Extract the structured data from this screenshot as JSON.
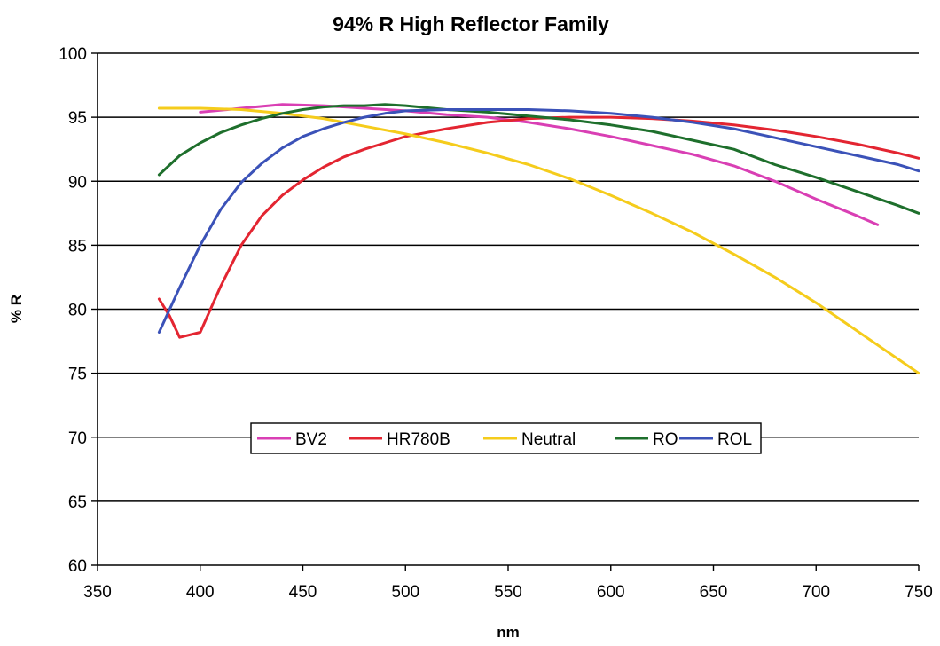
{
  "chart_data": {
    "type": "line",
    "title": "94% R High Reflector Family",
    "xlabel": "nm",
    "ylabel": "% R",
    "xlim": [
      350,
      750
    ],
    "ylim": [
      60,
      100
    ],
    "xticks": [
      350,
      400,
      450,
      500,
      550,
      600,
      650,
      700,
      750
    ],
    "yticks": [
      60,
      65,
      70,
      75,
      80,
      85,
      90,
      95,
      100
    ],
    "grid": "horizontal",
    "legend_placement": "lower-center",
    "series": [
      {
        "name": "BV2",
        "color": "#d93fb4",
        "x": [
          400,
          420,
          440,
          460,
          480,
          500,
          520,
          540,
          560,
          580,
          600,
          620,
          640,
          660,
          680,
          700,
          720,
          730
        ],
        "y": [
          95.4,
          95.7,
          96.0,
          95.9,
          95.7,
          95.5,
          95.2,
          95.0,
          94.6,
          94.1,
          93.5,
          92.8,
          92.1,
          91.2,
          90.0,
          88.6,
          87.3,
          86.6
        ]
      },
      {
        "name": "HR780B",
        "color": "#e32531",
        "x": [
          380,
          385,
          390,
          400,
          410,
          420,
          430,
          440,
          450,
          460,
          470,
          480,
          490,
          500,
          520,
          540,
          560,
          580,
          600,
          620,
          640,
          660,
          680,
          700,
          720,
          740,
          750
        ],
        "y": [
          80.8,
          79.5,
          77.8,
          78.2,
          81.8,
          85.0,
          87.3,
          88.9,
          90.1,
          91.1,
          91.9,
          92.5,
          93.0,
          93.5,
          94.1,
          94.6,
          94.9,
          95.0,
          95.0,
          94.9,
          94.7,
          94.4,
          94.0,
          93.5,
          92.9,
          92.2,
          91.8
        ]
      },
      {
        "name": "Neutral",
        "color": "#f5cc1c",
        "x": [
          380,
          400,
          420,
          440,
          460,
          480,
          500,
          520,
          540,
          560,
          580,
          600,
          620,
          640,
          660,
          680,
          700,
          720,
          740,
          750
        ],
        "y": [
          95.7,
          95.7,
          95.6,
          95.3,
          94.9,
          94.3,
          93.7,
          93.0,
          92.2,
          91.3,
          90.2,
          88.9,
          87.5,
          86.0,
          84.3,
          82.5,
          80.5,
          78.3,
          76.1,
          75.0
        ]
      },
      {
        "name": "RO",
        "color": "#1e6f2c",
        "x": [
          380,
          390,
          400,
          410,
          420,
          430,
          440,
          450,
          460,
          470,
          480,
          490,
          500,
          520,
          540,
          560,
          580,
          600,
          620,
          640,
          660,
          680,
          700,
          720,
          740,
          750
        ],
        "y": [
          90.5,
          92.0,
          93.0,
          93.8,
          94.4,
          94.9,
          95.3,
          95.6,
          95.8,
          95.9,
          95.9,
          96.0,
          95.9,
          95.6,
          95.4,
          95.1,
          94.8,
          94.4,
          93.9,
          93.2,
          92.5,
          91.3,
          90.3,
          89.2,
          88.1,
          87.5
        ]
      },
      {
        "name": "ROL",
        "color": "#3b52b8",
        "x": [
          380,
          390,
          400,
          410,
          420,
          430,
          440,
          450,
          460,
          470,
          480,
          490,
          500,
          520,
          540,
          560,
          580,
          600,
          620,
          640,
          660,
          680,
          700,
          720,
          740,
          750
        ],
        "y": [
          78.2,
          81.7,
          85.0,
          87.8,
          89.9,
          91.4,
          92.6,
          93.5,
          94.1,
          94.6,
          95.0,
          95.3,
          95.5,
          95.6,
          95.6,
          95.6,
          95.5,
          95.3,
          95.0,
          94.6,
          94.1,
          93.4,
          92.7,
          92.0,
          91.3,
          90.8
        ]
      }
    ]
  }
}
